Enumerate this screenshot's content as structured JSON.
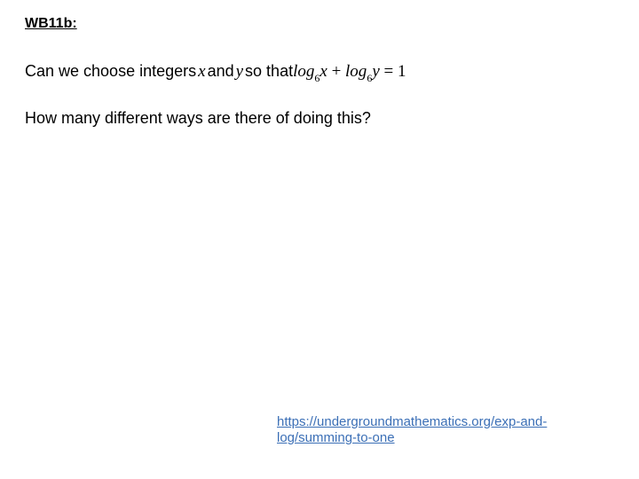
{
  "heading": "WB11b:",
  "question": {
    "lead": "Can we choose integers ",
    "var1": "x",
    "mid1": " and ",
    "var2": "y",
    "mid2": " so that  ",
    "eq_lhs_log1": "log",
    "eq_base": "6",
    "eq_x": "x",
    "eq_plus": " + ",
    "eq_lhs_log2": "log",
    "eq_y": "y",
    "eq_rhs": " = 1"
  },
  "subquestion": "How many different ways are there of doing this?",
  "link": {
    "text": "https://undergroundmathematics.org/exp-and-log/summing-to-one",
    "href": "https://undergroundmathematics.org/exp-and-log/summing-to-one"
  },
  "colors": {
    "background": "#ffffff",
    "text": "#000000",
    "link": "#3b6fb6"
  }
}
